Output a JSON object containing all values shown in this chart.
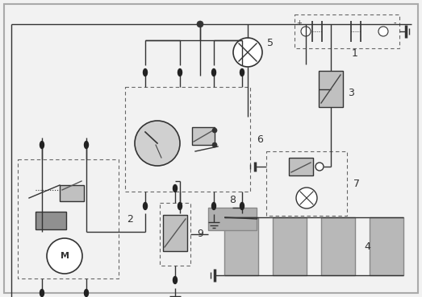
{
  "bg": "#f2f2f2",
  "lc": "#333333",
  "gray_fill": "#b0b0b0",
  "gray_fill2": "#c8c8c8",
  "dash_ec": "#666666",
  "white": "#ffffff"
}
